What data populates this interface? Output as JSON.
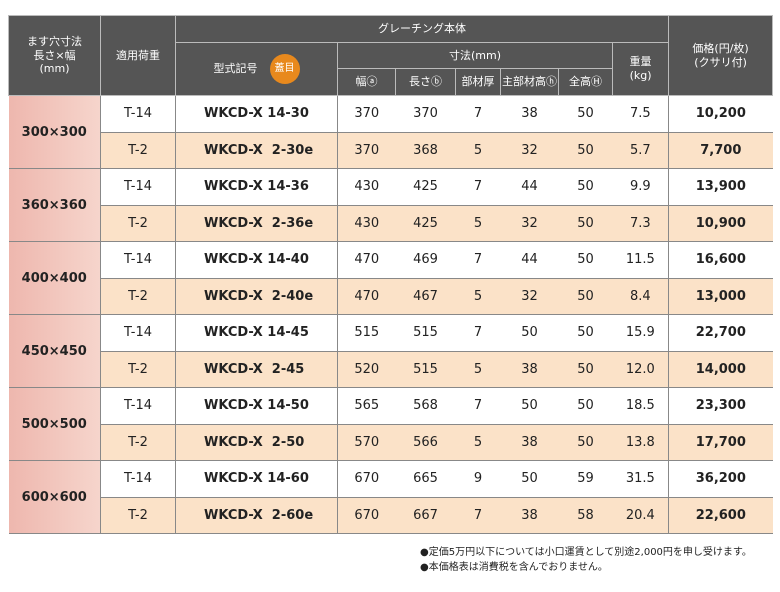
{
  "table": {
    "header": {
      "size": "ます穴寸法\n長さ×幅\n(mm)",
      "load": "適用荷重",
      "grating": "グレーチング本体",
      "model": "型式記号",
      "badge": "蓋目",
      "dims": "寸法(mm)",
      "width": "幅ⓐ",
      "length": "長さⓑ",
      "thickness": "部材厚",
      "main_height": "主部材高ⓗ",
      "total_height": "全高Ⓗ",
      "weight": "重量\n(kg)",
      "price": "価格(円/枚)\n(クサリ付)"
    },
    "groups": [
      {
        "size": "300×300",
        "rows": [
          [
            "T-14",
            "WKCD-X 14-30",
            "370",
            "370",
            "7",
            "38",
            "50",
            "7.5",
            "10,200"
          ],
          [
            "T-2",
            "WKCD-X  2-30e",
            "370",
            "368",
            "5",
            "32",
            "50",
            "5.7",
            "7,700"
          ]
        ]
      },
      {
        "size": "360×360",
        "rows": [
          [
            "T-14",
            "WKCD-X 14-36",
            "430",
            "425",
            "7",
            "44",
            "50",
            "9.9",
            "13,900"
          ],
          [
            "T-2",
            "WKCD-X  2-36e",
            "430",
            "425",
            "5",
            "32",
            "50",
            "7.3",
            "10,900"
          ]
        ]
      },
      {
        "size": "400×400",
        "rows": [
          [
            "T-14",
            "WKCD-X 14-40",
            "470",
            "469",
            "7",
            "44",
            "50",
            "11.5",
            "16,600"
          ],
          [
            "T-2",
            "WKCD-X  2-40e",
            "470",
            "467",
            "5",
            "32",
            "50",
            "8.4",
            "13,000"
          ]
        ]
      },
      {
        "size": "450×450",
        "rows": [
          [
            "T-14",
            "WKCD-X 14-45",
            "515",
            "515",
            "7",
            "50",
            "50",
            "15.9",
            "22,700"
          ],
          [
            "T-2",
            "WKCD-X  2-45",
            "520",
            "515",
            "5",
            "38",
            "50",
            "12.0",
            "14,000"
          ]
        ]
      },
      {
        "size": "500×500",
        "rows": [
          [
            "T-14",
            "WKCD-X 14-50",
            "565",
            "568",
            "7",
            "50",
            "50",
            "18.5",
            "23,300"
          ],
          [
            "T-2",
            "WKCD-X  2-50",
            "570",
            "566",
            "5",
            "38",
            "50",
            "13.8",
            "17,700"
          ]
        ]
      },
      {
        "size": "600×600",
        "rows": [
          [
            "T-14",
            "WKCD-X 14-60",
            "670",
            "665",
            "9",
            "50",
            "59",
            "31.5",
            "36,200"
          ],
          [
            "T-2",
            "WKCD-X  2-60e",
            "670",
            "667",
            "7",
            "38",
            "58",
            "20.4",
            "22,600"
          ]
        ]
      }
    ],
    "notes": [
      "●定価5万円以下については小口運賃として別途2,000円を申し受けます。",
      "●本価格表は消費税を含んでおりません。"
    ]
  }
}
